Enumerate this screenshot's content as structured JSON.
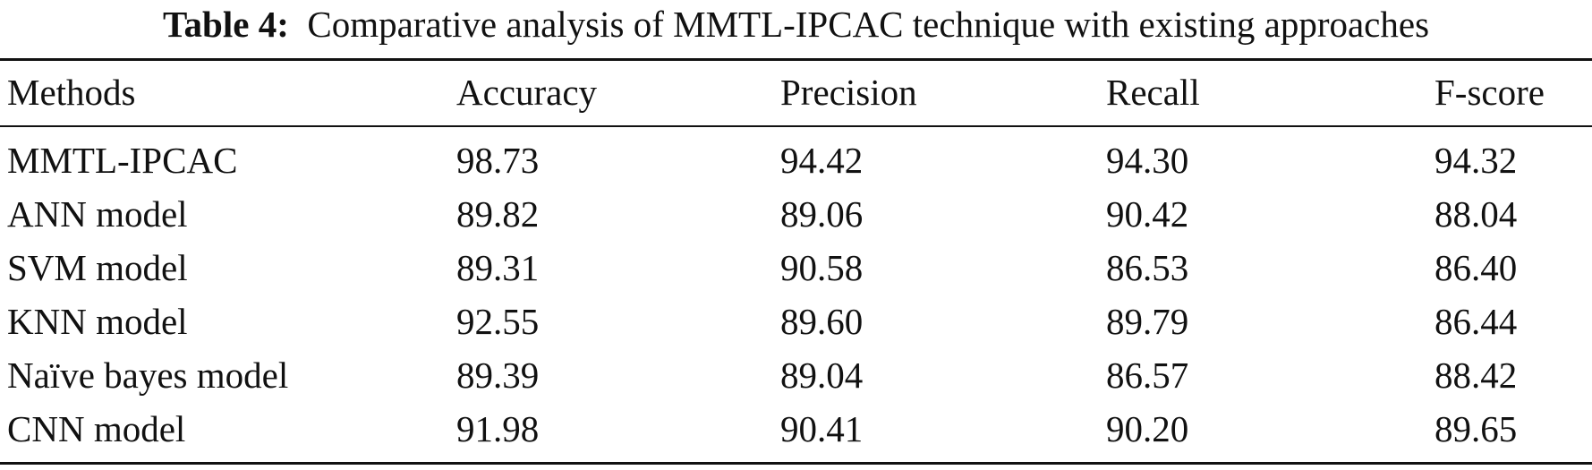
{
  "table": {
    "caption_label": "Table 4:",
    "caption_text": "Comparative analysis of MMTL-IPCAC technique with existing approaches",
    "columns": [
      "Methods",
      "Accuracy",
      "Precision",
      "Recall",
      "F-score"
    ],
    "rows": [
      [
        "MMTL-IPCAC",
        "98.73",
        "94.42",
        "94.30",
        "94.32"
      ],
      [
        "ANN model",
        "89.82",
        "89.06",
        "90.42",
        "88.04"
      ],
      [
        "SVM model",
        "89.31",
        "90.58",
        "86.53",
        "86.40"
      ],
      [
        "KNN model",
        "92.55",
        "89.60",
        "89.79",
        "86.44"
      ],
      [
        "Naïve bayes model",
        "89.39",
        "89.04",
        "86.57",
        "88.42"
      ],
      [
        "CNN model",
        "91.98",
        "90.41",
        "90.20",
        "89.65"
      ]
    ]
  }
}
